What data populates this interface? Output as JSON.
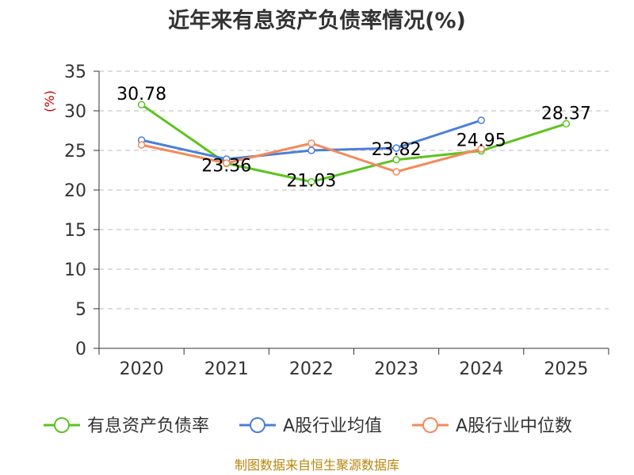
{
  "title": "近年来有息资产负债率情况(%)",
  "source": "制图数据来自恒生聚源数据库",
  "chart_data": {
    "type": "line",
    "unit_label": "(%)",
    "categories": [
      "2020",
      "2021",
      "2022",
      "2023",
      "2024",
      "2025"
    ],
    "ylim": [
      0,
      35
    ],
    "yticks": [
      "0",
      "5",
      "10",
      "15",
      "20",
      "25",
      "30",
      "35"
    ],
    "grid": true,
    "legend_position": "bottom",
    "series": [
      {
        "name": "有息资产负债率",
        "color": "#5ac41e",
        "values": [
          30.78,
          23.36,
          21.03,
          23.82,
          24.95,
          28.37
        ],
        "labels": [
          "30.78",
          "23.36",
          "21.03",
          "23.82",
          "24.95",
          "28.37"
        ]
      },
      {
        "name": "A股行业均值",
        "color": "#4a7fd8",
        "values": [
          26.3,
          23.9,
          25.0,
          25.3,
          28.8,
          null
        ]
      },
      {
        "name": "A股行业中位数",
        "color": "#f5895a",
        "values": [
          25.7,
          23.4,
          25.9,
          22.3,
          25.2,
          null
        ]
      }
    ]
  }
}
